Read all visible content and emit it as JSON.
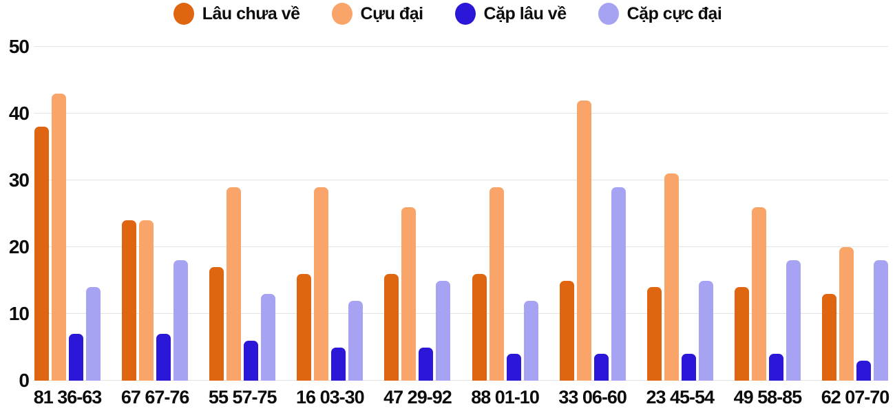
{
  "colors": {
    "background": "#ffffff",
    "text": "#0c0c0c",
    "gridline": "#e3e3e3"
  },
  "chart_data": {
    "type": "bar",
    "title": "",
    "xlabel": "",
    "ylabel": "",
    "categories": [
      "81 36-63",
      "67 67-76",
      "55 57-75",
      "16 03-30",
      "47 29-92",
      "88 01-10",
      "33 06-60",
      "23 45-54",
      "49 58-85",
      "62 07-70"
    ],
    "series": [
      {
        "name": "Lâu chưa về",
        "color": "#e06511",
        "values": [
          38,
          24,
          17,
          16,
          16,
          16,
          15,
          14,
          14,
          13
        ]
      },
      {
        "name": "Cựu đại",
        "color": "#f9a469",
        "values": [
          43,
          24,
          29,
          29,
          26,
          29,
          42,
          31,
          26,
          20
        ]
      },
      {
        "name": "Cặp lâu về",
        "color": "#2a17d8",
        "values": [
          7,
          7,
          6,
          5,
          5,
          4,
          4,
          4,
          4,
          3
        ]
      },
      {
        "name": "Cặp cực đại",
        "color": "#a6a4f2",
        "values": [
          14,
          18,
          13,
          12,
          15,
          12,
          29,
          15,
          18,
          18
        ]
      }
    ],
    "yticks": [
      0,
      10,
      20,
      30,
      40,
      50
    ],
    "ylim": [
      0,
      50
    ],
    "grid": true,
    "legend_position": "top"
  }
}
